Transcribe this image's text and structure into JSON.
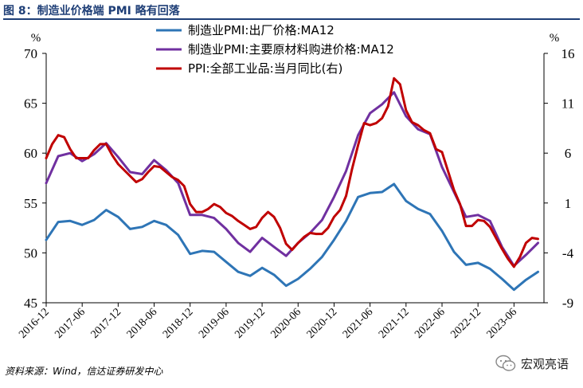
{
  "figure": {
    "title": "图 8：制造业价格端 PMI 略有回落",
    "source": "资料来源：Wind，信达证券研发中心",
    "watermark_text": "宏观亮语",
    "watermark_icon": "wechat-icon"
  },
  "chart_data": {
    "type": "line",
    "x_ticks": [
      "2016-12",
      "2017-06",
      "2017-12",
      "2018-06",
      "2018-12",
      "2019-06",
      "2019-12",
      "2020-06",
      "2020-12",
      "2021-06",
      "2021-12",
      "2022-06",
      "2022-12",
      "2023-06"
    ],
    "y_left": {
      "unit": "%",
      "ylim": [
        45,
        70
      ],
      "ticks": [
        45,
        50,
        55,
        60,
        65,
        70
      ]
    },
    "y_right": {
      "unit": "%",
      "ylim": [
        -9,
        16
      ],
      "ticks": [
        -9,
        -4,
        1,
        6,
        11,
        16
      ]
    },
    "legend_position": "top-center",
    "grid": false,
    "series": [
      {
        "name": "制造业PMI:出厂价格:MA12",
        "axis": "left",
        "color": "#2E75B6",
        "x": [
          "2016-12",
          "2017-02",
          "2017-04",
          "2017-06",
          "2017-08",
          "2017-10",
          "2017-12",
          "2018-02",
          "2018-04",
          "2018-06",
          "2018-08",
          "2018-10",
          "2018-12",
          "2019-02",
          "2019-04",
          "2019-06",
          "2019-08",
          "2019-10",
          "2019-12",
          "2020-02",
          "2020-04",
          "2020-06",
          "2020-08",
          "2020-10",
          "2020-12",
          "2021-02",
          "2021-04",
          "2021-06",
          "2021-08",
          "2021-10",
          "2021-12",
          "2022-02",
          "2022-04",
          "2022-06",
          "2022-08",
          "2022-10",
          "2022-12",
          "2023-02",
          "2023-04",
          "2023-06",
          "2023-08",
          "2023-10"
        ],
        "values": [
          51.3,
          53.1,
          53.2,
          52.8,
          53.3,
          54.3,
          53.6,
          52.4,
          52.6,
          53.2,
          52.8,
          51.8,
          49.9,
          50.2,
          50.1,
          49.1,
          48.1,
          47.7,
          48.5,
          47.8,
          46.7,
          47.4,
          48.4,
          49.6,
          51.3,
          53.2,
          55.6,
          56.0,
          56.1,
          56.9,
          55.2,
          54.4,
          53.9,
          52.2,
          50.1,
          48.8,
          49.0,
          48.4,
          47.4,
          46.3,
          47.3,
          48.1
        ]
      },
      {
        "name": "制造业PMI:主要原材料购进价格:MA12",
        "axis": "left",
        "color": "#7030A0",
        "x": [
          "2016-12",
          "2017-02",
          "2017-04",
          "2017-06",
          "2017-08",
          "2017-10",
          "2017-12",
          "2018-02",
          "2018-04",
          "2018-06",
          "2018-08",
          "2018-10",
          "2018-12",
          "2019-02",
          "2019-04",
          "2019-06",
          "2019-08",
          "2019-10",
          "2019-12",
          "2020-02",
          "2020-04",
          "2020-06",
          "2020-08",
          "2020-10",
          "2020-12",
          "2021-02",
          "2021-04",
          "2021-06",
          "2021-08",
          "2021-10",
          "2021-12",
          "2022-02",
          "2022-04",
          "2022-06",
          "2022-08",
          "2022-10",
          "2022-12",
          "2023-02",
          "2023-04",
          "2023-06",
          "2023-08",
          "2023-10"
        ],
        "values": [
          57.0,
          59.7,
          60.0,
          59.2,
          59.9,
          61.0,
          59.6,
          58.1,
          57.9,
          59.3,
          58.3,
          57.0,
          53.8,
          53.8,
          53.5,
          52.4,
          51.0,
          50.1,
          51.5,
          50.6,
          49.7,
          51.0,
          52.0,
          53.3,
          55.6,
          58.2,
          61.8,
          64.0,
          64.9,
          66.1,
          63.7,
          62.4,
          61.9,
          58.6,
          56.1,
          53.6,
          53.8,
          53.2,
          50.6,
          48.7,
          49.8,
          51.0
        ]
      },
      {
        "name": "PPI:全部工业品:当月同比(右)",
        "axis": "right",
        "color": "#C00000",
        "x": [
          "2016-12",
          "2017-01",
          "2017-02",
          "2017-03",
          "2017-04",
          "2017-05",
          "2017-06",
          "2017-07",
          "2017-08",
          "2017-09",
          "2017-10",
          "2017-11",
          "2017-12",
          "2018-01",
          "2018-02",
          "2018-03",
          "2018-04",
          "2018-05",
          "2018-06",
          "2018-07",
          "2018-08",
          "2018-09",
          "2018-10",
          "2018-11",
          "2018-12",
          "2019-01",
          "2019-02",
          "2019-03",
          "2019-04",
          "2019-05",
          "2019-06",
          "2019-07",
          "2019-08",
          "2019-09",
          "2019-10",
          "2019-11",
          "2019-12",
          "2020-01",
          "2020-02",
          "2020-03",
          "2020-04",
          "2020-05",
          "2020-06",
          "2020-07",
          "2020-08",
          "2020-09",
          "2020-10",
          "2020-11",
          "2020-12",
          "2021-01",
          "2021-02",
          "2021-03",
          "2021-04",
          "2021-05",
          "2021-06",
          "2021-07",
          "2021-08",
          "2021-09",
          "2021-10",
          "2021-11",
          "2021-12",
          "2022-01",
          "2022-02",
          "2022-03",
          "2022-04",
          "2022-05",
          "2022-06",
          "2022-07",
          "2022-08",
          "2022-09",
          "2022-10",
          "2022-11",
          "2022-12",
          "2023-01",
          "2023-02",
          "2023-03",
          "2023-04",
          "2023-05",
          "2023-06",
          "2023-07",
          "2023-08",
          "2023-09",
          "2023-10"
        ],
        "values": [
          5.5,
          6.9,
          7.8,
          7.6,
          6.4,
          5.5,
          5.5,
          5.5,
          6.3,
          6.9,
          6.9,
          5.8,
          4.9,
          4.3,
          3.7,
          3.1,
          3.4,
          4.1,
          4.7,
          4.6,
          4.1,
          3.6,
          3.3,
          2.7,
          0.9,
          0.1,
          0.1,
          0.4,
          0.9,
          0.6,
          0.0,
          -0.3,
          -0.8,
          -1.2,
          -1.6,
          -1.4,
          -0.5,
          0.1,
          -0.4,
          -1.5,
          -3.1,
          -3.7,
          -3.0,
          -2.4,
          -2.0,
          -2.1,
          -2.1,
          -1.5,
          -0.4,
          0.3,
          1.7,
          4.4,
          6.8,
          9.0,
          8.8,
          9.0,
          9.5,
          10.7,
          13.5,
          12.9,
          10.3,
          9.1,
          8.8,
          8.3,
          8.0,
          6.4,
          6.1,
          4.2,
          2.3,
          0.9,
          -1.3,
          -1.3,
          -0.7,
          -0.8,
          -1.4,
          -2.5,
          -3.6,
          -4.6,
          -5.4,
          -4.4,
          -3.0,
          -2.5,
          -2.6
        ]
      }
    ]
  }
}
